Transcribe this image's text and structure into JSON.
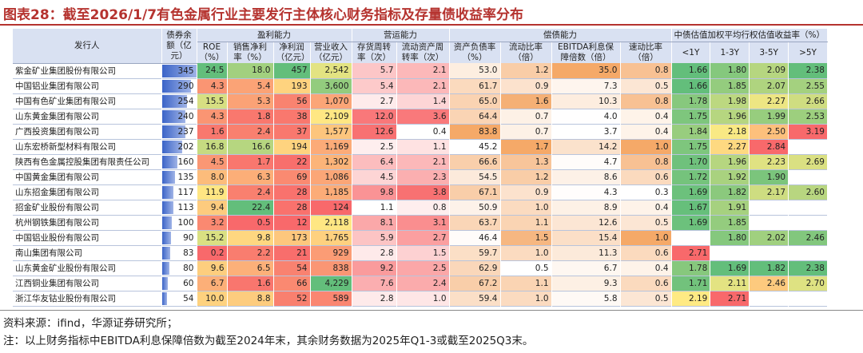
{
  "title": "图表28：截至2026/1/7有色金属行业主要发行主体核心财务指标及存量债收益率分布",
  "headers": {
    "issuer": "发行人",
    "bond_balance": "债券余额（亿元）",
    "groups": [
      "盈利能力",
      "营运能力",
      "偿债能力",
      "中债估值加权平均行权估值收益率（%）"
    ],
    "columns": [
      "ROE（%）",
      "销售净利率（%）",
      "净利润（亿元）",
      "营业收入（亿元）",
      "存货周转率（次）",
      "流动资产周转率（次）",
      "资产负债率（%）",
      "流动比率（倍）",
      "EBITDA利息保障倍数（倍）",
      "速动比率（倍）",
      "<1Y",
      "1-3Y",
      "3-5Y",
      ">5Y"
    ]
  },
  "colors": {
    "header_bg": "#d9e1f2",
    "bar": "#4a6fd0",
    "accent": "#b5332f",
    "green": "#63be7b",
    "yellow": "#ffeb84",
    "red": "#f8696b",
    "orange": "#f4a460"
  },
  "rows": [
    {
      "issuer": "紫金矿业集团股份有限公司",
      "balance": "345",
      "roe": "24.5",
      "npm": "18.0",
      "np": "457",
      "rev": "2,542",
      "inv": "5.7",
      "ca": "2.1",
      "debt": "53.0",
      "cur": "1.2",
      "ebitda": "35.0",
      "quick": "0.8",
      "y1": "1.66",
      "y3": "1.80",
      "y5": "2.09",
      "y10": "2.38"
    },
    {
      "issuer": "中国铝业集团有限公司",
      "balance": "290",
      "roe": "4.3",
      "npm": "5.4",
      "np": "193",
      "rev": "3,600",
      "inv": "5.4",
      "ca": "2.1",
      "debt": "61.7",
      "cur": "0.9",
      "ebitda": "7.3",
      "quick": "0.5",
      "y1": "1.66",
      "y3": "1.85",
      "y5": "2.07",
      "y10": "2.55"
    },
    {
      "issuer": "中国有色矿业集团有限公司",
      "balance": "254",
      "roe": "15.5",
      "npm": "5.3",
      "np": "56",
      "rev": "1,070",
      "inv": "2.7",
      "ca": "1.4",
      "debt": "65.0",
      "cur": "1.6",
      "ebitda": "10.3",
      "quick": "0.8",
      "y1": "1.78",
      "y3": "1.98",
      "y5": "2.27",
      "y10": "2.66"
    },
    {
      "issuer": "山东黄金集团有限公司",
      "balance": "240",
      "roe": "4.3",
      "npm": "1.8",
      "np": "38",
      "rev": "2,109",
      "inv": "12.0",
      "ca": "3.6",
      "debt": "64.4",
      "cur": "0.7",
      "ebitda": "4.0",
      "quick": "0.4",
      "y1": "1.75",
      "y3": "1.96",
      "y5": "1.99",
      "y10": "2.53"
    },
    {
      "issuer": "广西投资集团有限公司",
      "balance": "237",
      "roe": "1.6",
      "npm": "2.4",
      "np": "37",
      "rev": "1,577",
      "inv": "12.6",
      "ca": "0.4",
      "debt": "83.8",
      "cur": "0.7",
      "ebitda": "3.7",
      "quick": "0.4",
      "y1": "1.84",
      "y3": "2.18",
      "y5": "2.50",
      "y10": "3.19"
    },
    {
      "issuer": "山东宏桥新型材料有限公司",
      "balance": "202",
      "roe": "16.8",
      "npm": "16.6",
      "np": "194",
      "rev": "1,169",
      "inv": "2.5",
      "ca": "1.1",
      "debt": "45.2",
      "cur": "1.7",
      "ebitda": "14.2",
      "quick": "1.0",
      "y1": "1.75",
      "y3": "2.27",
      "y5": "2.84",
      "y10": ""
    },
    {
      "issuer": "陕西有色金属控股集团有限责任公司",
      "balance": "160",
      "roe": "4.5",
      "npm": "1.7",
      "np": "22",
      "rev": "1,302",
      "inv": "6.4",
      "ca": "2.1",
      "debt": "66.6",
      "cur": "1.3",
      "ebitda": "4.7",
      "quick": "0.8",
      "y1": "1.70",
      "y3": "1.96",
      "y5": "2.23",
      "y10": "2.69"
    },
    {
      "issuer": "中国黄金集团有限公司",
      "balance": "135",
      "roe": "8.0",
      "npm": "6.3",
      "np": "69",
      "rev": "1,086",
      "inv": "4.5",
      "ca": "2.3",
      "debt": "54.5",
      "cur": "1.2",
      "ebitda": "8.6",
      "quick": "0.6",
      "y1": "1.72",
      "y3": "1.92",
      "y5": "1.90",
      "y10": ""
    },
    {
      "issuer": "山东招金集团有限公司",
      "balance": "117",
      "roe": "11.9",
      "npm": "2.4",
      "np": "28",
      "rev": "1,185",
      "inv": "9.8",
      "ca": "3.8",
      "debt": "67.1",
      "cur": "0.9",
      "ebitda": "4.3",
      "quick": "0.3",
      "y1": "1.69",
      "y3": "1.82",
      "y5": "2.17",
      "y10": "2.60"
    },
    {
      "issuer": "招金矿业股份有限公司",
      "balance": "113",
      "roe": "9.4",
      "npm": "22.4",
      "np": "28",
      "rev": "124",
      "inv": "1.1",
      "ca": "0.8",
      "debt": "50.9",
      "cur": "1.0",
      "ebitda": "8.9",
      "quick": "0.4",
      "y1": "1.67",
      "y3": "1.91",
      "y5": "",
      "y10": ""
    },
    {
      "issuer": "杭州钢铁集团有限公司",
      "balance": "100",
      "roe": "3.2",
      "npm": "0.5",
      "np": "12",
      "rev": "2,118",
      "inv": "8.1",
      "ca": "3.1",
      "debt": "63.7",
      "cur": "1.1",
      "ebitda": "12.6",
      "quick": "0.5",
      "y1": "1.69",
      "y3": "1.85",
      "y5": "",
      "y10": ""
    },
    {
      "issuer": "中国铝业股份有限公司",
      "balance": "90",
      "roe": "15.2",
      "npm": "9.8",
      "np": "173",
      "rev": "1,765",
      "inv": "5.9",
      "ca": "2.7",
      "debt": "46.4",
      "cur": "1.5",
      "ebitda": "15.4",
      "quick": "1.0",
      "y1": "",
      "y3": "1.80",
      "y5": "2.02",
      "y10": "2.46"
    },
    {
      "issuer": "南山集团有限公司",
      "balance": "83",
      "roe": "0.2",
      "npm": "2.2",
      "np": "21",
      "rev": "929",
      "inv": "2.8",
      "ca": "1.5",
      "debt": "59.7",
      "cur": "1.0",
      "ebitda": "11.3",
      "quick": "0.6",
      "y1": "2.71",
      "y3": "",
      "y5": "",
      "y10": ""
    },
    {
      "issuer": "山东黄金矿业股份有限公司",
      "balance": "80",
      "roe": "9.6",
      "npm": "6.5",
      "np": "54",
      "rev": "838",
      "inv": "9.2",
      "ca": "2.5",
      "debt": "62.9",
      "cur": "0.5",
      "ebitda": "6.7",
      "quick": "0.4",
      "y1": "1.78",
      "y3": "1.69",
      "y5": "1.82",
      "y10": "2.38"
    },
    {
      "issuer": "江西铜业集团有限公司",
      "balance": "60",
      "roe": "6.7",
      "npm": "1.6",
      "np": "66",
      "rev": "4,229",
      "inv": "7.6",
      "ca": "2.4",
      "debt": "67.2",
      "cur": "1.1",
      "ebitda": "9.3",
      "quick": "0.6",
      "y1": "1.71",
      "y3": "2.11",
      "y5": "2.46",
      "y10": "2.70"
    },
    {
      "issuer": "浙江华友钴业股份有限公司",
      "balance": "54",
      "roe": "10.0",
      "npm": "8.8",
      "np": "52",
      "rev": "589",
      "inv": "2.8",
      "ca": "1.0",
      "debt": "59.4",
      "cur": "1.0",
      "ebitda": "5.8",
      "quick": "0.5",
      "y1": "2.19",
      "y3": "2.71",
      "y5": "",
      "y10": ""
    }
  ],
  "footnotes": {
    "source": "资料来源：ifind，华源证券研究所；",
    "note": "注：以上财务指标中EBITDA利息保障倍数为截至2024年末，其余财务数据为2025年Q1-3或截至2025Q3末。"
  }
}
